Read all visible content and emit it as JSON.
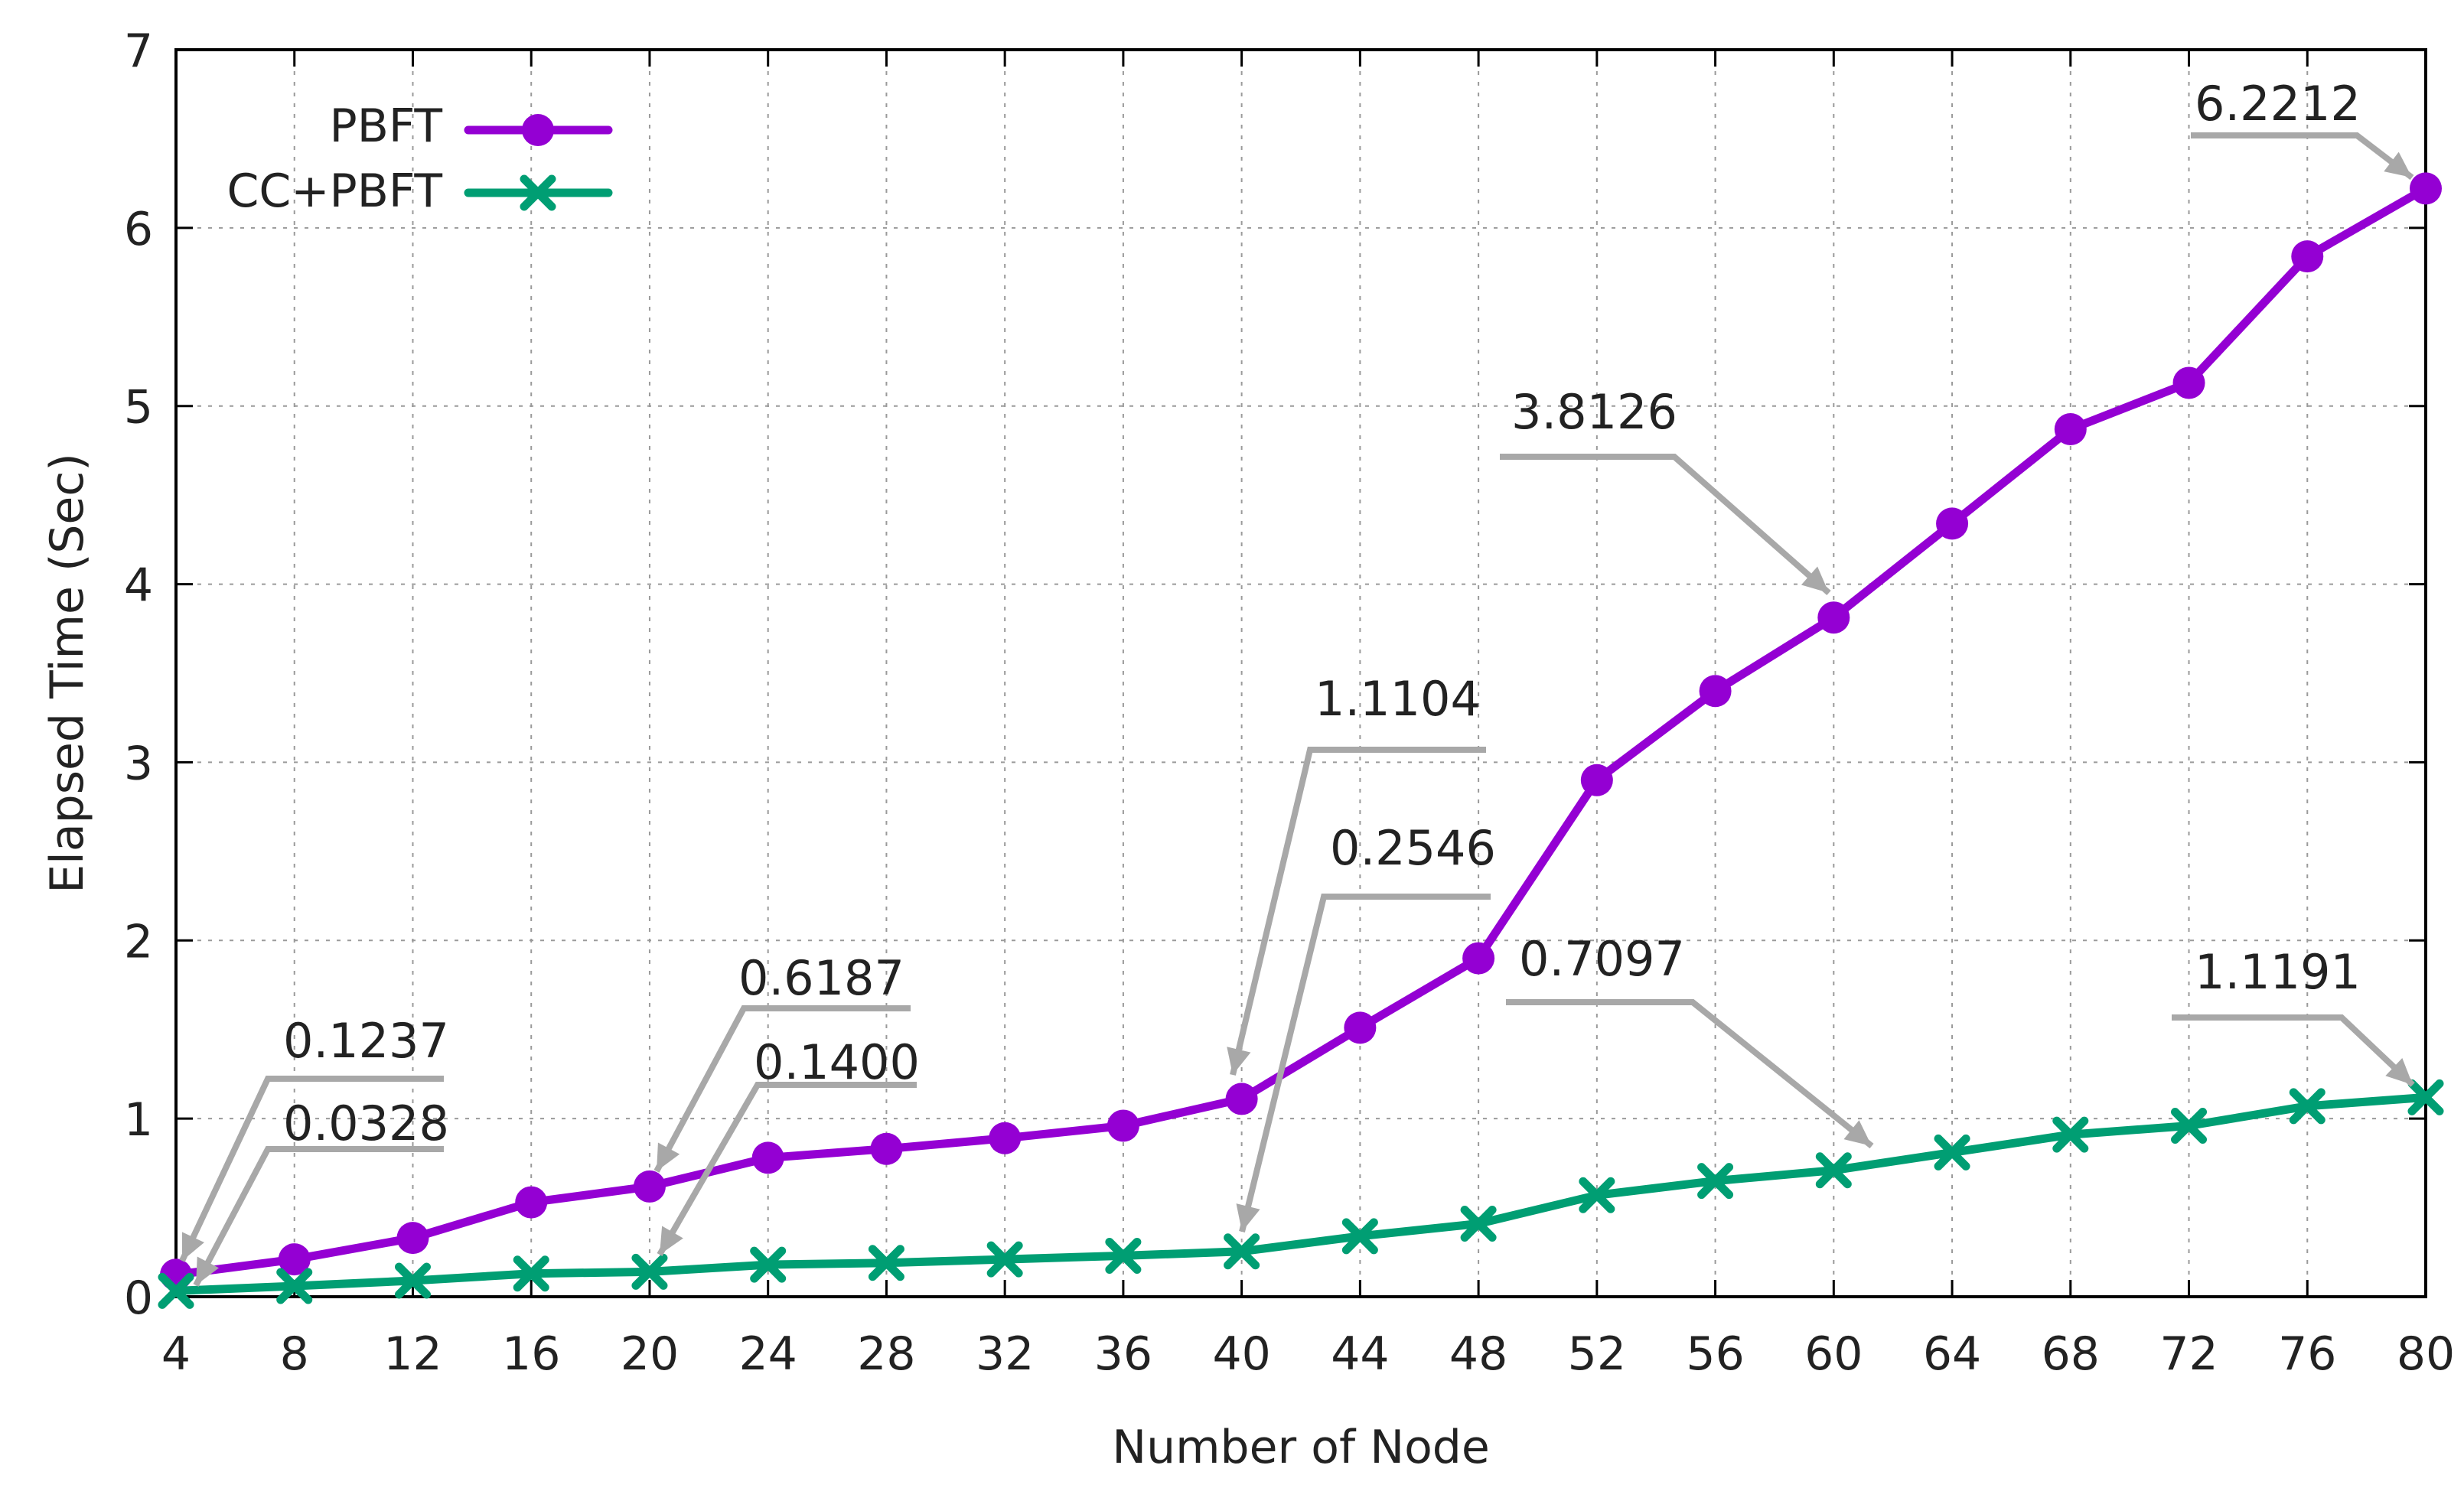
{
  "chart_data": {
    "type": "line",
    "title": "",
    "xlabel": "Number of Node",
    "ylabel": "Elapsed Time (Sec)",
    "x": [
      4,
      8,
      12,
      16,
      20,
      24,
      28,
      32,
      36,
      40,
      44,
      48,
      52,
      56,
      60,
      64,
      68,
      72,
      76,
      80
    ],
    "xlim": [
      4,
      80
    ],
    "ylim": [
      0,
      7
    ],
    "xticks": [
      "4",
      "8",
      "12",
      "16",
      "20",
      "24",
      "28",
      "32",
      "36",
      "40",
      "44",
      "48",
      "52",
      "56",
      "60",
      "64",
      "68",
      "72",
      "76",
      "80"
    ],
    "yticks": [
      "0",
      "1",
      "2",
      "3",
      "4",
      "5",
      "6",
      "7"
    ],
    "grid": true,
    "legend_position": "top-left",
    "series": [
      {
        "name": "PBFT",
        "color": "#9400d3",
        "marker": "circle",
        "values": [
          0.1237,
          0.21,
          0.33,
          0.53,
          0.6187,
          0.78,
          0.83,
          0.89,
          0.96,
          1.1104,
          1.51,
          1.9,
          2.9,
          3.4,
          3.8126,
          4.34,
          4.87,
          5.13,
          5.84,
          6.2212
        ]
      },
      {
        "name": "CC+PBFT",
        "color": "#009e73",
        "marker": "x",
        "values": [
          0.0328,
          0.06,
          0.09,
          0.13,
          0.14,
          0.18,
          0.19,
          0.21,
          0.23,
          0.2546,
          0.34,
          0.41,
          0.57,
          0.65,
          0.7097,
          0.81,
          0.91,
          0.96,
          1.07,
          1.1191
        ]
      }
    ],
    "annotations": [
      {
        "text": "0.1237",
        "series": "PBFT",
        "x": 4
      },
      {
        "text": "0.0328",
        "series": "CC+PBFT",
        "x": 4
      },
      {
        "text": "0.6187",
        "series": "PBFT",
        "x": 20
      },
      {
        "text": "0.1400",
        "series": "CC+PBFT",
        "x": 20
      },
      {
        "text": "1.1104",
        "series": "PBFT",
        "x": 40
      },
      {
        "text": "0.2546",
        "series": "CC+PBFT",
        "x": 40
      },
      {
        "text": "3.8126",
        "series": "PBFT",
        "x": 60
      },
      {
        "text": "0.7097",
        "series": "CC+PBFT",
        "x": 60
      },
      {
        "text": "6.2212",
        "series": "PBFT",
        "x": 80
      },
      {
        "text": "1.1191",
        "series": "CC+PBFT",
        "x": 80
      }
    ]
  }
}
